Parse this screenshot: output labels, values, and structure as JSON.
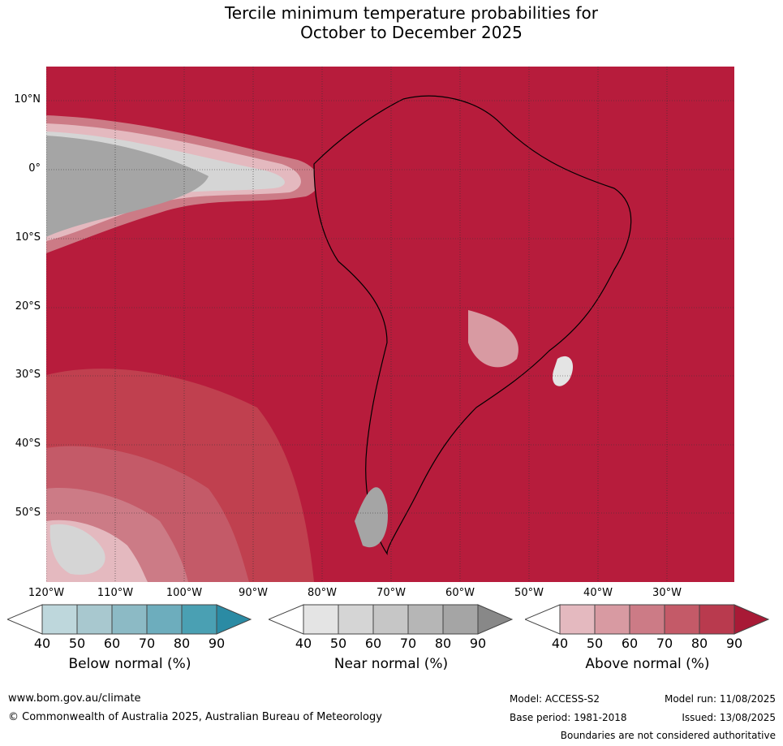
{
  "title_line1": "Tercile minimum temperature probabilities for",
  "title_line2": "October to December 2025",
  "map": {
    "lat_labels": [
      "10°N",
      "0°",
      "10°S",
      "20°S",
      "30°S",
      "40°S",
      "50°S"
    ],
    "lon_labels": [
      "120°W",
      "110°W",
      "100°W",
      "90°W",
      "80°W",
      "70°W",
      "60°W",
      "50°W",
      "40°W",
      "30°W"
    ],
    "background_color": "#b71c3c"
  },
  "legends": {
    "ticks": [
      "40",
      "50",
      "60",
      "70",
      "80",
      "90"
    ],
    "below": {
      "label": "Below normal (%)",
      "colors": [
        "#bed7dc",
        "#a8c8cf",
        "#8cbac5",
        "#6dadbd",
        "#4aa0b3",
        "#2b8ba4"
      ]
    },
    "near": {
      "label": "Near normal (%)",
      "colors": [
        "#e4e4e4",
        "#d5d5d5",
        "#c6c6c6",
        "#b6b6b6",
        "#a5a5a5",
        "#888888"
      ]
    },
    "above": {
      "label": "Above normal (%)",
      "colors": [
        "#e4b9bf",
        "#d89aa2",
        "#cc7b86",
        "#c45a68",
        "#b93a4e",
        "#a81a36"
      ]
    }
  },
  "footer": {
    "website": "www.bom.gov.au/climate",
    "copyright": "© Commonwealth of Australia 2025, Australian Bureau of Meteorology",
    "model": "Model: ACCESS-S2",
    "model_run": "Model run: 11/08/2025",
    "base_period": "Base period: 1981-2018",
    "issued": "Issued: 13/08/2025",
    "boundaries": "Boundaries are not considered authoritative"
  }
}
